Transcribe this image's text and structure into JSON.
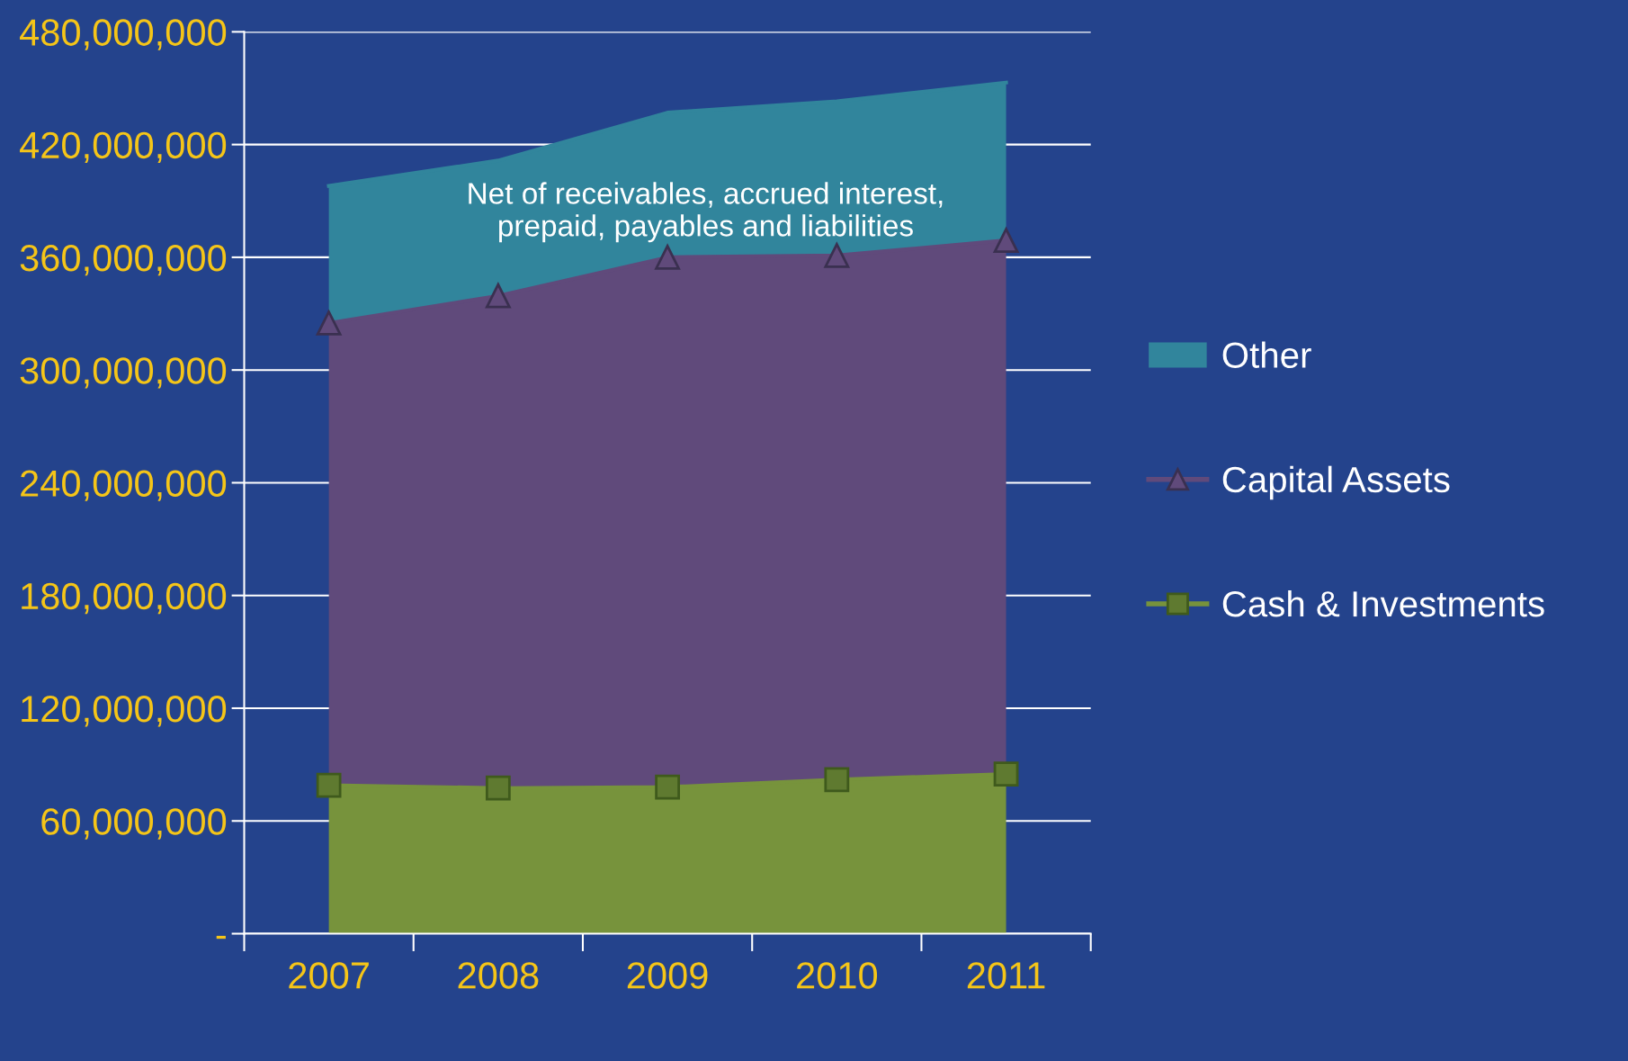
{
  "chart_data": {
    "type": "area",
    "stacked": true,
    "categories": [
      "2007",
      "2008",
      "2009",
      "2010",
      "2011"
    ],
    "series": [
      {
        "name": "Cash & Investments",
        "color": "#77933c",
        "marker": "square",
        "values": [
          79000000,
          77500000,
          78000000,
          82000000,
          85000000
        ]
      },
      {
        "name": "Capital Assets",
        "color": "#604a7b",
        "marker": "triangle",
        "values": [
          246000000,
          262000000,
          282000000,
          279000000,
          284000000
        ]
      },
      {
        "name": "Other",
        "color": "#31859c",
        "marker": "none",
        "values": [
          73000000,
          72000000,
          77000000,
          82000000,
          84000000
        ]
      }
    ],
    "ylim": [
      0,
      480000000
    ],
    "yticks": [
      {
        "value": 0,
        "label": "-"
      },
      {
        "value": 60000000,
        "label": "60,000,000"
      },
      {
        "value": 120000000,
        "label": "120,000,000"
      },
      {
        "value": 180000000,
        "label": "180,000,000"
      },
      {
        "value": 240000000,
        "label": "240,000,000"
      },
      {
        "value": 300000000,
        "label": "300,000,000"
      },
      {
        "value": 360000000,
        "label": "360,000,000"
      },
      {
        "value": 420000000,
        "label": "420,000,000"
      },
      {
        "value": 480000000,
        "label": "480,000,000"
      }
    ],
    "grid": "y",
    "legend": "right",
    "annotations": [
      "Net of receivables, accrued interest,\nprepaid, payables and liabilities"
    ]
  }
}
